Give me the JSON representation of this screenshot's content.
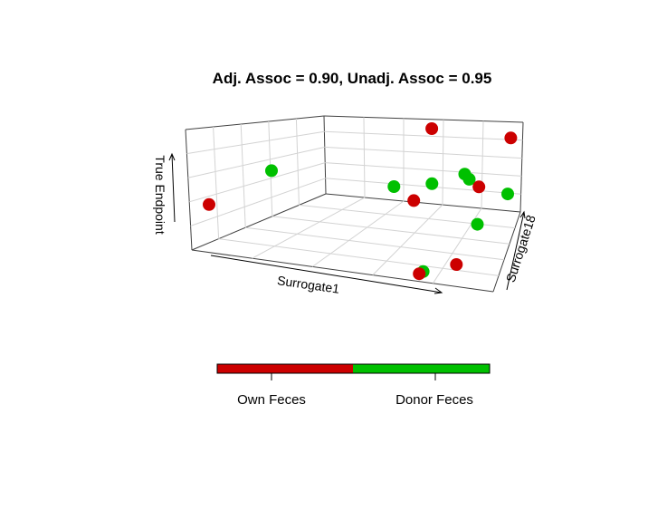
{
  "chart_data": {
    "type": "scatter",
    "title": "Adj. Assoc = 0.90, Unadj. Assoc = 0.95",
    "axes": {
      "x": "Surrogate1",
      "y": "Surrogate18",
      "z": "True Endpoint"
    },
    "box": true,
    "grid": true,
    "legend": {
      "placement": "bottom",
      "categories": [
        {
          "label": "Own Feces",
          "color": "#cc0000"
        },
        {
          "label": "Donor Feces",
          "color": "#00c000"
        }
      ]
    },
    "points": [
      {
        "group": "Own Feces",
        "x": 0.02,
        "y": 0.1,
        "z": 0.35
      },
      {
        "group": "Donor Feces",
        "x": 0.18,
        "y": 0.25,
        "z": 0.65
      },
      {
        "group": "Own Feces",
        "x": 0.55,
        "y": 0.98,
        "z": 0.9
      },
      {
        "group": "Own Feces",
        "x": 0.95,
        "y": 0.95,
        "z": 0.85
      },
      {
        "group": "Donor Feces",
        "x": 0.78,
        "y": 0.75,
        "z": 0.55
      },
      {
        "group": "Donor Feces",
        "x": 0.8,
        "y": 0.75,
        "z": 0.5
      },
      {
        "group": "Own Feces",
        "x": 0.85,
        "y": 0.72,
        "z": 0.45
      },
      {
        "group": "Donor Feces",
        "x": 0.98,
        "y": 0.7,
        "z": 0.42
      },
      {
        "group": "Donor Feces",
        "x": 0.6,
        "y": 0.85,
        "z": 0.35
      },
      {
        "group": "Donor Feces",
        "x": 0.42,
        "y": 0.85,
        "z": 0.28
      },
      {
        "group": "Own Feces",
        "x": 0.55,
        "y": 0.75,
        "z": 0.22
      },
      {
        "group": "Donor Feces",
        "x": 0.9,
        "y": 0.4,
        "z": 0.3
      },
      {
        "group": "Own Feces",
        "x": 0.85,
        "y": 0.2,
        "z": 0.05
      },
      {
        "group": "Donor Feces",
        "x": 0.75,
        "y": 0.1,
        "z": 0.02
      },
      {
        "group": "Own Feces",
        "x": 0.74,
        "y": 0.08,
        "z": 0.01
      }
    ]
  }
}
